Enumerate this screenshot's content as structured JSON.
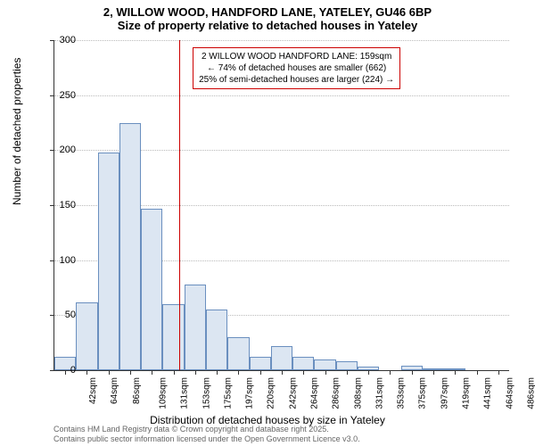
{
  "title_main": "2, WILLOW WOOD, HANDFORD LANE, YATELEY, GU46 6BP",
  "title_sub": "Size of property relative to detached houses in Yateley",
  "y_axis_label": "Number of detached properties",
  "x_axis_label": "Distribution of detached houses by size in Yateley",
  "chart": {
    "type": "histogram",
    "ylim": [
      0,
      300
    ],
    "ytick_step": 50,
    "background_color": "#ffffff",
    "grid_color": "#bbbbbb",
    "bar_fill": "#dce6f2",
    "bar_border": "#6a8fbf",
    "ref_line_color": "#cc0000",
    "ref_line_x": 159,
    "x_categories": [
      "42sqm",
      "64sqm",
      "86sqm",
      "109sqm",
      "131sqm",
      "153sqm",
      "175sqm",
      "197sqm",
      "220sqm",
      "242sqm",
      "264sqm",
      "286sqm",
      "308sqm",
      "331sqm",
      "353sqm",
      "375sqm",
      "397sqm",
      "419sqm",
      "441sqm",
      "464sqm",
      "486sqm"
    ],
    "values": [
      12,
      62,
      198,
      225,
      147,
      60,
      78,
      55,
      30,
      12,
      22,
      12,
      10,
      8,
      3,
      0,
      4,
      2,
      1,
      0,
      0
    ],
    "title_fontsize": 13,
    "label_fontsize": 12,
    "tick_fontsize": 10
  },
  "annotation": {
    "line1": "2 WILLOW WOOD HANDFORD LANE: 159sqm",
    "line2": "← 74% of detached houses are smaller (662)",
    "line3": "25% of semi-detached houses are larger (224) →"
  },
  "footer_line1": "Contains HM Land Registry data © Crown copyright and database right 2025.",
  "footer_line2": "Contains public sector information licensed under the Open Government Licence v3.0."
}
